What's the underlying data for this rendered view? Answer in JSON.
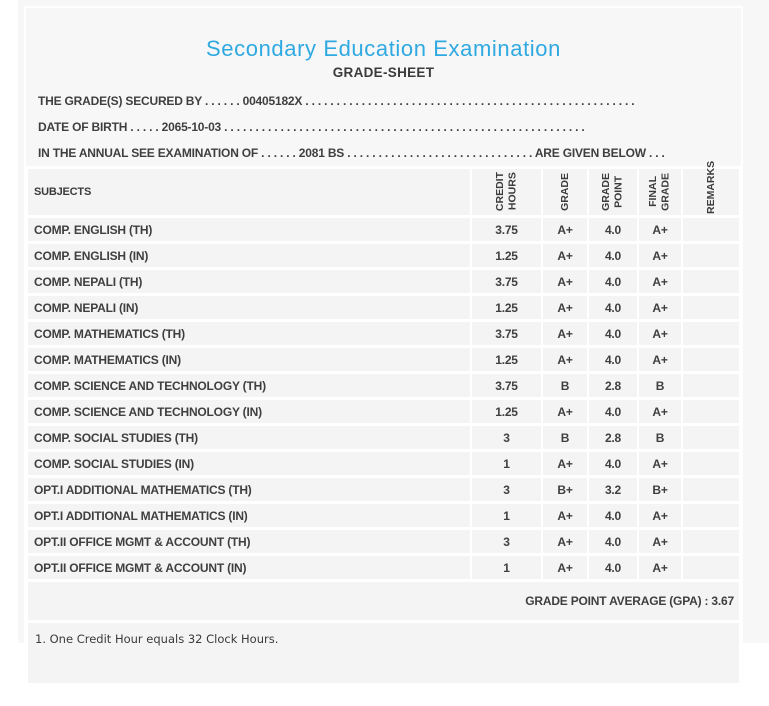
{
  "title": "Secondary Education Examination",
  "subtitle": "GRADE-SHEET",
  "accent_color": "#2fa9e1",
  "background_color": "#f7f7f7",
  "cell_color": "#f4f4f4",
  "text_color": "#3f3f3f",
  "info_lines": [
    {
      "text": "THE GRADE(S) SECURED BY . . . . . . 00405182X . . . . . . . . . . . . . . . . . . . . . . . . . . . . . . . . . . . . . . . . . . . . . . . . . . . . ."
    },
    {
      "text": "DATE OF BIRTH . . . . . 2065-10-03 . . . . . . . . . . . . . . . . . . . . . . . . . . . . . . . . . . . . . . . . . . . . . . . . . . . . . . . . . ."
    },
    {
      "text": "IN THE ANNUAL SEE EXAMINATION OF . . . . . . 2081 BS . . . . . . . . . . . . . . . . . . . . . . . . . . . . . . ARE GIVEN BELOW . . ."
    }
  ],
  "table": {
    "columns": [
      "SUBJECTS",
      "CREDIT\nHOURS",
      "GRADE",
      "GRADE\nPOINT",
      "FINAL\nGRADE",
      "REMARKS"
    ],
    "rows": [
      {
        "subject": "COMP. ENGLISH (TH)",
        "credit_hours": "3.75",
        "grade": "A+",
        "grade_point": "4.0",
        "final_grade": "A+",
        "remarks": ""
      },
      {
        "subject": "COMP. ENGLISH (IN)",
        "credit_hours": "1.25",
        "grade": "A+",
        "grade_point": "4.0",
        "final_grade": "A+",
        "remarks": ""
      },
      {
        "subject": "COMP. NEPALI (TH)",
        "credit_hours": "3.75",
        "grade": "A+",
        "grade_point": "4.0",
        "final_grade": "A+",
        "remarks": ""
      },
      {
        "subject": "COMP. NEPALI (IN)",
        "credit_hours": "1.25",
        "grade": "A+",
        "grade_point": "4.0",
        "final_grade": "A+",
        "remarks": ""
      },
      {
        "subject": "COMP. MATHEMATICS (TH)",
        "credit_hours": "3.75",
        "grade": "A+",
        "grade_point": "4.0",
        "final_grade": "A+",
        "remarks": ""
      },
      {
        "subject": "COMP. MATHEMATICS (IN)",
        "credit_hours": "1.25",
        "grade": "A+",
        "grade_point": "4.0",
        "final_grade": "A+",
        "remarks": ""
      },
      {
        "subject": "COMP. SCIENCE AND TECHNOLOGY (TH)",
        "credit_hours": "3.75",
        "grade": "B",
        "grade_point": "2.8",
        "final_grade": "B",
        "remarks": ""
      },
      {
        "subject": "COMP. SCIENCE AND TECHNOLOGY (IN)",
        "credit_hours": "1.25",
        "grade": "A+",
        "grade_point": "4.0",
        "final_grade": "A+",
        "remarks": ""
      },
      {
        "subject": "COMP. SOCIAL STUDIES (TH)",
        "credit_hours": "3",
        "grade": "B",
        "grade_point": "2.8",
        "final_grade": "B",
        "remarks": ""
      },
      {
        "subject": "COMP. SOCIAL STUDIES (IN)",
        "credit_hours": "1",
        "grade": "A+",
        "grade_point": "4.0",
        "final_grade": "A+",
        "remarks": ""
      },
      {
        "subject": "OPT.I ADDITIONAL MATHEMATICS (TH)",
        "credit_hours": "3",
        "grade": "B+",
        "grade_point": "3.2",
        "final_grade": "B+",
        "remarks": ""
      },
      {
        "subject": "OPT.I ADDITIONAL MATHEMATICS (IN)",
        "credit_hours": "1",
        "grade": "A+",
        "grade_point": "4.0",
        "final_grade": "A+",
        "remarks": ""
      },
      {
        "subject": "OPT.II OFFICE MGMT & ACCOUNT (TH)",
        "credit_hours": "3",
        "grade": "A+",
        "grade_point": "4.0",
        "final_grade": "A+",
        "remarks": ""
      },
      {
        "subject": "OPT.II OFFICE MGMT & ACCOUNT (IN)",
        "credit_hours": "1",
        "grade": "A+",
        "grade_point": "4.0",
        "final_grade": "A+",
        "remarks": ""
      }
    ]
  },
  "gpa_line": "GRADE POINT AVERAGE (GPA) : 3.67",
  "footnote": "1. One Credit Hour equals 32 Clock Hours."
}
